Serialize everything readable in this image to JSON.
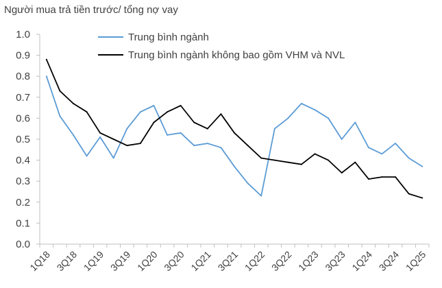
{
  "chart_data": {
    "type": "line",
    "title": "Người mua trả tiền trước/ tổng nợ vay",
    "xlabel": "",
    "ylabel": "",
    "ylim": [
      0,
      1.0
    ],
    "yticks": [
      "0.0",
      "0.1",
      "0.2",
      "0.3",
      "0.4",
      "0.5",
      "0.6",
      "0.7",
      "0.8",
      "0.9",
      "1.0"
    ],
    "grid": false,
    "legend": "top",
    "x": [
      "1Q18",
      "2Q18",
      "3Q18",
      "4Q18",
      "1Q19",
      "2Q19",
      "3Q19",
      "4Q19",
      "1Q20",
      "2Q20",
      "3Q20",
      "4Q20",
      "1Q21",
      "2Q21",
      "3Q21",
      "4Q21",
      "1Q22",
      "2Q22",
      "3Q22",
      "4Q22",
      "1Q23",
      "2Q23",
      "3Q23",
      "4Q23",
      "1Q24",
      "2Q24",
      "3Q24",
      "4Q24",
      "1Q25"
    ],
    "xtick_labels": [
      "1Q18",
      "3Q18",
      "1Q19",
      "3Q19",
      "1Q20",
      "3Q20",
      "1Q21",
      "3Q21",
      "1Q22",
      "3Q22",
      "1Q23",
      "3Q23",
      "1Q24",
      "3Q24",
      "1Q25"
    ],
    "series": [
      {
        "name": "Trung bình ngành",
        "color": "#5B9BD5",
        "values": [
          0.8,
          0.61,
          0.52,
          0.42,
          0.51,
          0.41,
          0.55,
          0.63,
          0.66,
          0.52,
          0.53,
          0.47,
          0.48,
          0.46,
          0.37,
          0.29,
          0.23,
          0.55,
          0.6,
          0.67,
          0.64,
          0.6,
          0.5,
          0.58,
          0.46,
          0.43,
          0.48,
          0.41,
          0.37
        ]
      },
      {
        "name": "Trung bình ngành không bao gồm VHM và NVL",
        "color": "#000000",
        "values": [
          0.88,
          0.73,
          0.67,
          0.63,
          0.53,
          0.5,
          0.47,
          0.48,
          0.58,
          0.63,
          0.66,
          0.58,
          0.55,
          0.62,
          0.53,
          0.47,
          0.41,
          0.4,
          0.39,
          0.38,
          0.43,
          0.4,
          0.34,
          0.39,
          0.31,
          0.32,
          0.32,
          0.24,
          0.22
        ]
      }
    ]
  }
}
